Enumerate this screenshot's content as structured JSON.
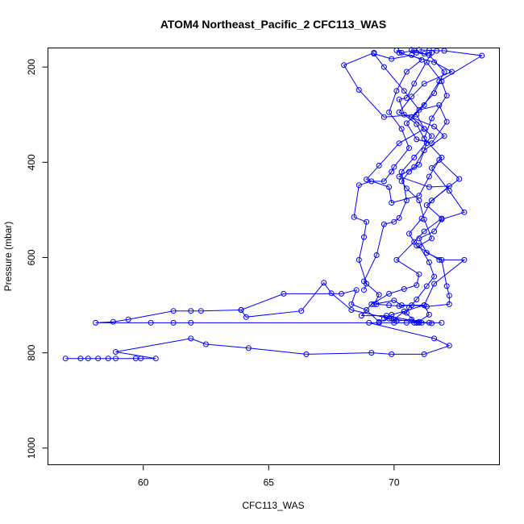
{
  "chart_data": {
    "type": "scatter",
    "title": "ATOM4 Northeast_Pacific_2 CFC113_WAS",
    "xlabel": "CFC113_WAS",
    "ylabel": "Pressure (mbar)",
    "xlim": [
      56.2,
      74.2
    ],
    "ylim": [
      1035,
      160
    ],
    "y_inverted": true,
    "x_ticks": [
      60,
      65,
      70
    ],
    "y_ticks": [
      200,
      400,
      600,
      800,
      1000
    ],
    "grid": false,
    "legend": "none",
    "color": "#0000ff",
    "series": [
      {
        "values": [
          {
            "x": 69.2,
            "y": 170
          },
          {
            "x": 68.0,
            "y": 196
          },
          {
            "x": 68.6,
            "y": 248
          },
          {
            "x": 69.6,
            "y": 305
          },
          {
            "x": 70.9,
            "y": 300
          },
          {
            "x": 71.2,
            "y": 330
          },
          {
            "x": 70.2,
            "y": 360
          },
          {
            "x": 69.4,
            "y": 407
          },
          {
            "x": 68.9,
            "y": 436
          },
          {
            "x": 69.8,
            "y": 452
          },
          {
            "x": 69.9,
            "y": 485
          },
          {
            "x": 71.0,
            "y": 470
          },
          {
            "x": 71.4,
            "y": 430
          },
          {
            "x": 71.8,
            "y": 395
          },
          {
            "x": 72.6,
            "y": 435
          },
          {
            "x": 71.5,
            "y": 480
          },
          {
            "x": 71.1,
            "y": 518
          },
          {
            "x": 70.6,
            "y": 550
          },
          {
            "x": 70.9,
            "y": 575
          },
          {
            "x": 71.8,
            "y": 605
          },
          {
            "x": 72.8,
            "y": 605
          },
          {
            "x": 71.6,
            "y": 655
          },
          {
            "x": 71.2,
            "y": 700
          },
          {
            "x": 70.4,
            "y": 713
          },
          {
            "x": 70.0,
            "y": 730
          },
          {
            "x": 68.3,
            "y": 710
          },
          {
            "x": 67.5,
            "y": 675
          },
          {
            "x": 67.2,
            "y": 653
          },
          {
            "x": 66.3,
            "y": 712
          },
          {
            "x": 64.1,
            "y": 725
          },
          {
            "x": 63.9,
            "y": 710
          },
          {
            "x": 62.3,
            "y": 712
          },
          {
            "x": 61.9,
            "y": 712
          },
          {
            "x": 61.2,
            "y": 712
          },
          {
            "x": 59.4,
            "y": 730
          },
          {
            "x": 58.8,
            "y": 735
          },
          {
            "x": 58.1,
            "y": 737
          },
          {
            "x": 60.3,
            "y": 737
          },
          {
            "x": 61.2,
            "y": 737
          },
          {
            "x": 61.9,
            "y": 737
          },
          {
            "x": 70.0,
            "y": 737
          },
          {
            "x": 71.4,
            "y": 737
          },
          {
            "x": 71.9,
            "y": 737
          },
          {
            "x": 70.9,
            "y": 737
          },
          {
            "x": 70.5,
            "y": 737
          },
          {
            "x": 69.4,
            "y": 737
          },
          {
            "x": 69.0,
            "y": 737
          },
          {
            "x": 71.6,
            "y": 770
          },
          {
            "x": 72.2,
            "y": 785
          },
          {
            "x": 71.2,
            "y": 803
          },
          {
            "x": 69.9,
            "y": 803
          },
          {
            "x": 69.1,
            "y": 800
          },
          {
            "x": 66.5,
            "y": 803
          },
          {
            "x": 64.2,
            "y": 790
          },
          {
            "x": 62.5,
            "y": 782
          },
          {
            "x": 61.9,
            "y": 770
          },
          {
            "x": 58.9,
            "y": 798
          },
          {
            "x": 60.5,
            "y": 812
          },
          {
            "x": 59.9,
            "y": 812
          },
          {
            "x": 59.7,
            "y": 812
          },
          {
            "x": 58.9,
            "y": 812
          },
          {
            "x": 58.6,
            "y": 812
          },
          {
            "x": 58.2,
            "y": 812
          },
          {
            "x": 57.8,
            "y": 812
          },
          {
            "x": 57.5,
            "y": 812
          },
          {
            "x": 56.9,
            "y": 812
          }
        ]
      },
      {
        "values": [
          {
            "x": 70.2,
            "y": 170
          },
          {
            "x": 71.6,
            "y": 190
          },
          {
            "x": 72.3,
            "y": 210
          },
          {
            "x": 71.2,
            "y": 235
          },
          {
            "x": 70.7,
            "y": 262
          },
          {
            "x": 70.2,
            "y": 295
          },
          {
            "x": 71.6,
            "y": 325
          },
          {
            "x": 72.0,
            "y": 345
          },
          {
            "x": 71.2,
            "y": 375
          },
          {
            "x": 70.8,
            "y": 410
          },
          {
            "x": 70.2,
            "y": 430
          },
          {
            "x": 71.4,
            "y": 452
          },
          {
            "x": 72.2,
            "y": 450
          },
          {
            "x": 71.3,
            "y": 490
          },
          {
            "x": 71.9,
            "y": 518
          },
          {
            "x": 71.2,
            "y": 545
          },
          {
            "x": 70.8,
            "y": 567
          },
          {
            "x": 70.1,
            "y": 605
          },
          {
            "x": 71.0,
            "y": 635
          },
          {
            "x": 70.9,
            "y": 658
          },
          {
            "x": 70.4,
            "y": 666
          },
          {
            "x": 69.8,
            "y": 676
          },
          {
            "x": 69.1,
            "y": 698
          },
          {
            "x": 68.7,
            "y": 722
          },
          {
            "x": 69.7,
            "y": 722
          },
          {
            "x": 71.0,
            "y": 735
          },
          {
            "x": 71.5,
            "y": 738
          },
          {
            "x": 71.1,
            "y": 737
          },
          {
            "x": 69.8,
            "y": 728
          },
          {
            "x": 69.4,
            "y": 735
          },
          {
            "x": 68.9,
            "y": 710
          },
          {
            "x": 68.3,
            "y": 698
          },
          {
            "x": 68.5,
            "y": 668
          },
          {
            "x": 67.9,
            "y": 676
          },
          {
            "x": 65.6,
            "y": 676
          },
          {
            "x": 63.9,
            "y": 710
          }
        ]
      },
      {
        "values": [
          {
            "x": 71.0,
            "y": 164
          },
          {
            "x": 71.4,
            "y": 165
          },
          {
            "x": 71.7,
            "y": 166
          },
          {
            "x": 72.0,
            "y": 166
          },
          {
            "x": 73.5,
            "y": 176
          },
          {
            "x": 71.8,
            "y": 230
          },
          {
            "x": 71.2,
            "y": 280
          },
          {
            "x": 70.5,
            "y": 318
          },
          {
            "x": 70.9,
            "y": 352
          },
          {
            "x": 71.5,
            "y": 360
          },
          {
            "x": 72.1,
            "y": 315
          },
          {
            "x": 71.8,
            "y": 280
          },
          {
            "x": 71.0,
            "y": 290
          },
          {
            "x": 70.4,
            "y": 250
          },
          {
            "x": 69.6,
            "y": 200
          },
          {
            "x": 69.2,
            "y": 172
          },
          {
            "x": 69.9,
            "y": 183
          },
          {
            "x": 70.7,
            "y": 175
          },
          {
            "x": 71.1,
            "y": 185
          },
          {
            "x": 70.5,
            "y": 210
          },
          {
            "x": 70.1,
            "y": 250
          },
          {
            "x": 69.8,
            "y": 295
          },
          {
            "x": 70.3,
            "y": 330
          },
          {
            "x": 70.6,
            "y": 370
          },
          {
            "x": 70.0,
            "y": 410
          },
          {
            "x": 69.9,
            "y": 420
          },
          {
            "x": 69.6,
            "y": 440
          },
          {
            "x": 69.1,
            "y": 440
          },
          {
            "x": 68.6,
            "y": 448
          },
          {
            "x": 68.4,
            "y": 515
          },
          {
            "x": 68.9,
            "y": 525
          },
          {
            "x": 68.8,
            "y": 557
          },
          {
            "x": 68.6,
            "y": 605
          },
          {
            "x": 68.9,
            "y": 655
          },
          {
            "x": 68.8,
            "y": 668
          }
        ]
      },
      {
        "values": [
          {
            "x": 70.7,
            "y": 164
          },
          {
            "x": 70.9,
            "y": 170
          },
          {
            "x": 71.4,
            "y": 175
          },
          {
            "x": 72.0,
            "y": 210
          },
          {
            "x": 71.6,
            "y": 255
          },
          {
            "x": 70.7,
            "y": 305
          },
          {
            "x": 71.2,
            "y": 330
          },
          {
            "x": 71.5,
            "y": 345
          },
          {
            "x": 70.8,
            "y": 390
          },
          {
            "x": 70.3,
            "y": 420
          },
          {
            "x": 70.5,
            "y": 480
          },
          {
            "x": 70.2,
            "y": 517
          },
          {
            "x": 70.0,
            "y": 525
          },
          {
            "x": 69.6,
            "y": 530
          },
          {
            "x": 69.3,
            "y": 595
          },
          {
            "x": 68.8,
            "y": 650
          },
          {
            "x": 69.4,
            "y": 678
          },
          {
            "x": 69.2,
            "y": 698
          },
          {
            "x": 70.0,
            "y": 690
          },
          {
            "x": 70.3,
            "y": 700
          },
          {
            "x": 71.2,
            "y": 700
          },
          {
            "x": 71.4,
            "y": 720
          },
          {
            "x": 70.9,
            "y": 737
          },
          {
            "x": 70.4,
            "y": 713
          },
          {
            "x": 69.9,
            "y": 720
          },
          {
            "x": 69.6,
            "y": 728
          },
          {
            "x": 69.9,
            "y": 728
          },
          {
            "x": 70.1,
            "y": 733
          },
          {
            "x": 70.7,
            "y": 730
          },
          {
            "x": 70.8,
            "y": 737
          },
          {
            "x": 71.0,
            "y": 737
          }
        ]
      },
      {
        "values": [
          {
            "x": 71.3,
            "y": 190
          },
          {
            "x": 71.9,
            "y": 230
          },
          {
            "x": 72.1,
            "y": 260
          },
          {
            "x": 71.5,
            "y": 308
          },
          {
            "x": 71.2,
            "y": 350
          },
          {
            "x": 71.9,
            "y": 390
          },
          {
            "x": 71.5,
            "y": 412
          },
          {
            "x": 72.2,
            "y": 460
          },
          {
            "x": 72.8,
            "y": 505
          },
          {
            "x": 71.9,
            "y": 520
          },
          {
            "x": 71.6,
            "y": 545
          },
          {
            "x": 71.0,
            "y": 560
          },
          {
            "x": 71.3,
            "y": 590
          },
          {
            "x": 71.9,
            "y": 605
          },
          {
            "x": 72.1,
            "y": 660
          },
          {
            "x": 72.2,
            "y": 680
          },
          {
            "x": 72.2,
            "y": 698
          },
          {
            "x": 71.3,
            "y": 703
          },
          {
            "x": 70.7,
            "y": 700
          },
          {
            "x": 70.2,
            "y": 702
          },
          {
            "x": 69.8,
            "y": 700
          },
          {
            "x": 69.3,
            "y": 698
          }
        ]
      },
      {
        "values": [
          {
            "x": 70.1,
            "y": 165
          },
          {
            "x": 70.3,
            "y": 170
          },
          {
            "x": 70.8,
            "y": 165
          },
          {
            "x": 71.2,
            "y": 172
          },
          {
            "x": 71.5,
            "y": 170
          },
          {
            "x": 70.8,
            "y": 235
          },
          {
            "x": 70.5,
            "y": 265
          },
          {
            "x": 70.2,
            "y": 268
          },
          {
            "x": 70.4,
            "y": 300
          },
          {
            "x": 70.9,
            "y": 320
          },
          {
            "x": 71.3,
            "y": 360
          },
          {
            "x": 71.0,
            "y": 405
          },
          {
            "x": 70.6,
            "y": 420
          },
          {
            "x": 70.3,
            "y": 440
          },
          {
            "x": 70.5,
            "y": 455
          },
          {
            "x": 71.0,
            "y": 480
          },
          {
            "x": 71.2,
            "y": 520
          },
          {
            "x": 71.5,
            "y": 560
          },
          {
            "x": 71.0,
            "y": 575
          },
          {
            "x": 71.4,
            "y": 610
          },
          {
            "x": 71.6,
            "y": 640
          },
          {
            "x": 71.3,
            "y": 660
          },
          {
            "x": 70.9,
            "y": 688
          },
          {
            "x": 70.6,
            "y": 705
          },
          {
            "x": 70.5,
            "y": 716
          }
        ]
      }
    ]
  }
}
